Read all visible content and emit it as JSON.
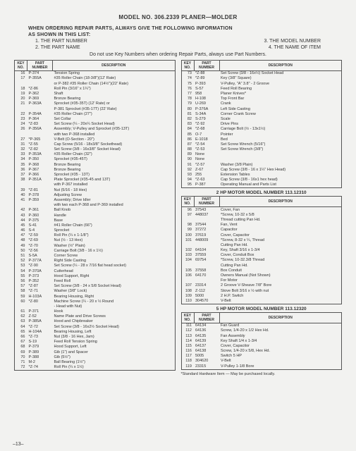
{
  "title": "MODEL NO. 306.2339 PLANER—MOLDER",
  "intro1": "WHEN ORDERING REPAIR PARTS, ALWAYS GIVE THE FOLLOWING INFORMATION",
  "intro2": "AS SHOWN IN THIS LIST:",
  "bullets": {
    "b1": "1. THE PART NUMBER",
    "b2": "2. THE PART NAME",
    "b3": "3. THE MODEL NUMBER",
    "b4": "4. THE NAME OF ITEM"
  },
  "note": "Do not use Key Numbers when ordering Repair Parts, always use Part Numbers.",
  "headers": {
    "key": "KEY\nNO.",
    "part": "PART\nNUMBER",
    "desc": "DESCRIPTION"
  },
  "left": [
    {
      "k": "16",
      "p": "P-374",
      "d": "Tension Spring"
    },
    {
      "k": "17",
      "p": "P-355A",
      "d": "#35 Roller Chain (18-3/8\")(12' Rate)"
    },
    {
      "k": "",
      "p": "",
      "d": "or P-382 #35 Roller Chain (14½\")(22' Rate)"
    },
    {
      "k": "18",
      "p": "*Z-86",
      "d": "Roll Pin (3/16\" x 1¼\")"
    },
    {
      "k": "19",
      "p": "P-362",
      "d": "Shaft"
    },
    {
      "k": "20",
      "p": "P-369",
      "d": "Bronze Bearing"
    },
    {
      "k": "21",
      "p": "P-363A",
      "d": "Sprocket (#35-35T) (12' Rate) or"
    },
    {
      "k": "",
      "p": "",
      "d": "P-381 Sprocket (#35-17T) (22' Rate)"
    },
    {
      "k": "22",
      "p": "P-354A",
      "d": "#35 Roller Chain (27\")"
    },
    {
      "k": "23",
      "p": "P-364",
      "d": "Set Collar"
    },
    {
      "k": "24",
      "p": "*Z-83",
      "d": "Set Screw (¼ - 20x¼ Socket Head)"
    },
    {
      "k": "26",
      "p": "P-356A",
      "d": "Assembly; V-Pulley and Sprocket (#35-13T)"
    },
    {
      "k": "",
      "p": "",
      "d": "with two P-368 installed"
    },
    {
      "k": "27",
      "p": "*P-365",
      "d": "V-Belt (O-Section - 20\")"
    },
    {
      "k": "31",
      "p": "*Z-55",
      "d": "Cap Screw (5/16 - 18x3/8\" Sockethead)"
    },
    {
      "k": "32",
      "p": "*Z-82",
      "d": "Set Screw (3/8 - 16x3/8\" Socket Head)"
    },
    {
      "k": "33",
      "p": "P-353A",
      "d": "#35 Roller Chain (32\")"
    },
    {
      "k": "34",
      "p": "P-350",
      "d": "Sprocket (#35-45T)"
    },
    {
      "k": "35",
      "p": "P-368",
      "d": "Bronze Bearing"
    },
    {
      "k": "36",
      "p": "P-367",
      "d": "Bronze Bearing"
    },
    {
      "k": "37",
      "p": "P-366",
      "d": "Sprocket (#35 - 13T)"
    },
    {
      "k": "38",
      "p": "P-351A",
      "d": "Plate Sprocket (#35-45 and 13T)"
    },
    {
      "k": "",
      "p": "",
      "d": "with P-367 installed"
    },
    {
      "k": "39",
      "p": "*Z-81",
      "d": "Nut (5/16 - 18 Hex)"
    },
    {
      "k": "40",
      "p": "P-378",
      "d": "Adjusting Screw"
    },
    {
      "k": "41",
      "p": "P-359",
      "d": "Assembly; Drive Idler"
    },
    {
      "k": "",
      "p": "",
      "d": "with two each P-368 and P-369 installed"
    },
    {
      "k": "42",
      "p": "P-361",
      "d": "Ball Knob"
    },
    {
      "k": "43",
      "p": "P-360",
      "d": "Handle"
    },
    {
      "k": "44",
      "p": "P-375",
      "d": "Base"
    },
    {
      "k": "45",
      "p": "S-41",
      "d": "#41 Roller Chain (66\")"
    },
    {
      "k": "46",
      "p": "S-4",
      "d": "Sprocket"
    },
    {
      "k": "47",
      "p": "*Z-59",
      "d": "Roll Pin (¼ x 1-1/8\")"
    },
    {
      "k": "48",
      "p": "*Z-69",
      "d": "Nut (½ - 13 Hex)"
    },
    {
      "k": "49",
      "p": "*Z-70",
      "d": "Washer (½\" Plain)"
    },
    {
      "k": "50",
      "p": "*Z-56",
      "d": "Carriage Bolt (3/8 - 16 x 1½)"
    },
    {
      "k": "51",
      "p": "S-5A",
      "d": "Corner Screw"
    },
    {
      "k": "52",
      "p": "P-377A",
      "d": "Right Side Casting"
    },
    {
      "k": "53",
      "p": "*Z-90",
      "d": "Set Screw (¼ - 28 x 7/16 flat head socket)"
    },
    {
      "k": "54",
      "p": "P-370A",
      "d": "Cutterhead"
    },
    {
      "k": "55",
      "p": "P-373",
      "d": "Hood Support, Right"
    },
    {
      "k": "56",
      "p": "P-352",
      "d": "Feed Roll"
    },
    {
      "k": "57",
      "p": "*Z-87",
      "d": "Set Screw (3/8 - 24 x 5/8 Socket Head)"
    },
    {
      "k": "58",
      "p": "*Z-71",
      "d": "Washer (3/8\" Lock)"
    },
    {
      "k": "59",
      "p": "H-103A",
      "d": "Bearing Housing, Right"
    },
    {
      "k": "60",
      "p": "*Z-80",
      "d": "Machine Screw (¼ - 20 x ½ Round"
    },
    {
      "k": "",
      "p": "",
      "d": "- Head with Nut)"
    },
    {
      "k": "61",
      "p": "P-371",
      "d": "Hook"
    },
    {
      "k": "62",
      "p": "Z-52",
      "d": "Name Plate and Drive Screws"
    },
    {
      "k": "63",
      "p": "P-385A",
      "d": "Hood and Chipbreaker"
    },
    {
      "k": "64",
      "p": "*Z-72",
      "d": "Set Screw (3/8 - 16x2½ Socket Head)"
    },
    {
      "k": "65",
      "p": "H-104A",
      "d": "Bearing Housing, Left"
    },
    {
      "k": "66",
      "p": "*Z-73",
      "d": "Nut (3/8 - 16 Hex, Jam)"
    },
    {
      "k": "67",
      "p": "S-19",
      "d": "Feed Roll Tension Spring"
    },
    {
      "k": "68",
      "p": "P-379",
      "d": "Hood Support, Left"
    },
    {
      "k": "69",
      "p": "P-389",
      "d": "Gib (1\") and Spacer"
    },
    {
      "k": "70",
      "p": "P-388",
      "d": "Gib (5½\")"
    },
    {
      "k": "71",
      "p": "M-2",
      "d": "Ball Bearing (1½\")"
    },
    {
      "k": "72",
      "p": "*Z-74",
      "d": "Roll Pin (¼ x 1½)"
    }
  ],
  "rightA": [
    {
      "k": "73",
      "p": "*Z-88",
      "d": "Set Screw (3/8 - 16x½) Socket Head"
    },
    {
      "k": "74",
      "p": "*Z-89",
      "d": "Key (3/8\" Square)"
    },
    {
      "k": "75",
      "p": "P-393",
      "d": "V-Pulley, \"A\" 3.8\" - 2 Groove"
    },
    {
      "k": "76",
      "p": "S-57",
      "d": "Feed Roll Bearing"
    },
    {
      "k": "77",
      "p": "958",
      "d": "Planer Knives*"
    },
    {
      "k": "78",
      "p": "H-108",
      "d": "Top Front Bar"
    },
    {
      "k": "79",
      "p": "U-269",
      "d": "Crank"
    },
    {
      "k": "80",
      "p": "P-376A",
      "d": "Left Side Casting"
    },
    {
      "k": "81",
      "p": "S-34A",
      "d": "Corner Crank Screw"
    },
    {
      "k": "82",
      "p": "S-279",
      "d": "Scale"
    },
    {
      "k": "83",
      "p": "*Z-92",
      "d": "Drive Pins"
    },
    {
      "k": "84",
      "p": "*Z-68",
      "d": "Carriage Bolt (½ - 13x1½)"
    },
    {
      "k": "85",
      "p": "O-7",
      "d": "Pointer"
    },
    {
      "k": "86",
      "p": "E-1018",
      "d": "Bed"
    },
    {
      "k": "87",
      "p": "*Z-54",
      "d": "Set Screw Wrench (5/16\")"
    },
    {
      "k": "88",
      "p": "*Z-53",
      "d": "Set Screw Wrench (3/8\")"
    },
    {
      "k": "89",
      "p": "None",
      "d": ""
    },
    {
      "k": "90",
      "p": "None",
      "d": ""
    },
    {
      "k": "91",
      "p": "*Z-57",
      "d": "Washer (3/8 Plain)"
    },
    {
      "k": "92",
      "p": "Z-67",
      "d": "Cap Screw (3/8 - 16 x 1¼\" Hex Head)"
    },
    {
      "k": "93",
      "p": "255",
      "d": "Extension Tables"
    },
    {
      "k": "94",
      "p": "*Z-63",
      "d": "Cap Screw (3/8 - 16x1 hex head)"
    },
    {
      "k": "95",
      "p": "P-387",
      "d": "Operating Manual and Parts List"
    }
  ],
  "sectB": "2 HP MOTOR MODEL NUMBER 113.12310",
  "rightB": [
    {
      "k": "96",
      "p": "37543",
      "d": "Cover, Fan"
    },
    {
      "k": "97",
      "p": "448037",
      "d": "*Screw, 10-32 x 5/8"
    },
    {
      "k": "",
      "p": "",
      "d": "Thread cutting Pan Hd."
    },
    {
      "k": "98",
      "p": "37544",
      "d": "Fan, Vent"
    },
    {
      "k": "99",
      "p": "37272",
      "d": "Capacitor"
    },
    {
      "k": "100",
      "p": "37619",
      "d": "Cover, Capacitor"
    },
    {
      "k": "101",
      "p": "448009",
      "d": "*Screw, 8-32 x ¼, Thread"
    },
    {
      "k": "",
      "p": "",
      "d": "Cutting Pan Hd."
    },
    {
      "k": "102",
      "p": "64104",
      "d": "Key, Shaft 3/16 x 1-3/4"
    },
    {
      "k": "103",
      "p": "37559",
      "d": "Cover, Conduit Box"
    },
    {
      "k": "104",
      "p": "69754",
      "d": "*Screw, 10-32.3/8 Thread"
    },
    {
      "k": "",
      "p": "",
      "d": "Cutting Pan Hd."
    },
    {
      "k": "105",
      "p": "37558",
      "d": "Box Conduit"
    },
    {
      "k": "106",
      "p": "64170",
      "d": "Owners Manual (Not Shown)"
    },
    {
      "k": "",
      "p": "",
      "d": "For Motor"
    },
    {
      "k": "107",
      "p": "23314",
      "d": "2 Groove V-Sheave 7/8\" Bore"
    },
    {
      "k": "108",
      "p": "Z-112",
      "d": "Stove Bolt 3/16 x ½ with nut"
    },
    {
      "k": "109",
      "p": "5000",
      "d": "2 H.P. Switch"
    },
    {
      "k": "110",
      "p": "304570",
      "d": "V-Belt"
    }
  ],
  "sectC": "5 HP MOTOR MODEL NUMBER 113.12320",
  "rightC": [
    {
      "k": "111",
      "p": "64134",
      "d": "Fan Guard"
    },
    {
      "k": "112",
      "p": "64136",
      "d": "Screw, 1/4-20 x 1/2 Hex Hd."
    },
    {
      "k": "113",
      "p": "64135",
      "d": "Fan Assembly"
    },
    {
      "k": "114",
      "p": "64139",
      "d": "Key Shaft 1/4 x 1-3/4"
    },
    {
      "k": "115",
      "p": "64137",
      "d": "Cover, Capacitor"
    },
    {
      "k": "116",
      "p": "64138",
      "d": "Screw, 1/4-20 x 5/8, Hex Hd."
    },
    {
      "k": "117",
      "p": "5005",
      "d": "Switch 5 HP"
    },
    {
      "k": "118",
      "p": "304620",
      "d": "V-Belt"
    },
    {
      "k": "119",
      "p": "23315",
      "d": "V-Pulley 1-1/8 Bore"
    }
  ],
  "footnote": "*Standard Hardware Item — May be purchased locally.",
  "pagenum": "–13–"
}
